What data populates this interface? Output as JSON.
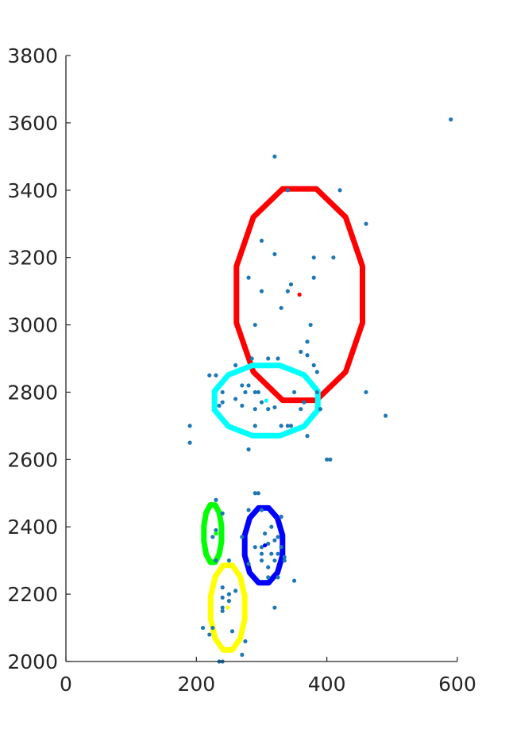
{
  "chart_data": {
    "type": "scatter",
    "title": "",
    "xlabel": "",
    "ylabel": "",
    "xlim": [
      0,
      600
    ],
    "ylim": [
      2000,
      3800
    ],
    "x_ticks": [
      0,
      200,
      400,
      600
    ],
    "y_ticks": [
      2000,
      2200,
      2400,
      2600,
      2800,
      3000,
      3200,
      3400,
      3600,
      3800
    ],
    "x_tick_labels": [
      "0",
      "200",
      "400",
      "600"
    ],
    "y_tick_labels": [
      "2000",
      "2200",
      "2400",
      "2600",
      "2800",
      "3000",
      "3200",
      "3400",
      "3600",
      "3800"
    ],
    "grid": false,
    "legend": "none",
    "point_color": "#1f77b4",
    "points": [
      [
        590,
        3610
      ],
      [
        320,
        3500
      ],
      [
        340,
        3400
      ],
      [
        420,
        3400
      ],
      [
        460,
        3300
      ],
      [
        300,
        3250
      ],
      [
        320,
        3210
      ],
      [
        380,
        3200
      ],
      [
        410,
        3200
      ],
      [
        280,
        3140
      ],
      [
        380,
        3140
      ],
      [
        345,
        3120
      ],
      [
        300,
        3100
      ],
      [
        340,
        3100
      ],
      [
        330,
        3050
      ],
      [
        290,
        3000
      ],
      [
        375,
        3000
      ],
      [
        370,
        2950
      ],
      [
        360,
        2920
      ],
      [
        370,
        2910
      ],
      [
        380,
        2880
      ],
      [
        385,
        2860
      ],
      [
        260,
        2880
      ],
      [
        285,
        2900
      ],
      [
        310,
        2900
      ],
      [
        325,
        2900
      ],
      [
        220,
        2850
      ],
      [
        230,
        2850
      ],
      [
        240,
        2800
      ],
      [
        270,
        2820
      ],
      [
        280,
        2820
      ],
      [
        290,
        2800
      ],
      [
        295,
        2800
      ],
      [
        275,
        2800
      ],
      [
        260,
        2780
      ],
      [
        300,
        2770
      ],
      [
        240,
        2770
      ],
      [
        235,
        2760
      ],
      [
        270,
        2760
      ],
      [
        290,
        2750
      ],
      [
        310,
        2750
      ],
      [
        320,
        2755
      ],
      [
        350,
        2800
      ],
      [
        365,
        2770
      ],
      [
        385,
        2800
      ],
      [
        360,
        2750
      ],
      [
        390,
        2750
      ],
      [
        330,
        2700
      ],
      [
        340,
        2700
      ],
      [
        345,
        2700
      ],
      [
        290,
        2700
      ],
      [
        370,
        2670
      ],
      [
        460,
        2800
      ],
      [
        490,
        2730
      ],
      [
        190,
        2700
      ],
      [
        190,
        2650
      ],
      [
        280,
        2630
      ],
      [
        400,
        2600
      ],
      [
        405,
        2600
      ],
      [
        290,
        2500
      ],
      [
        295,
        2500
      ],
      [
        230,
        2480
      ],
      [
        240,
        2440
      ],
      [
        280,
        2450
      ],
      [
        300,
        2450
      ],
      [
        330,
        2430
      ],
      [
        315,
        2400
      ],
      [
        305,
        2380
      ],
      [
        325,
        2370
      ],
      [
        230,
        2390
      ],
      [
        225,
        2370
      ],
      [
        270,
        2370
      ],
      [
        290,
        2340
      ],
      [
        300,
        2340
      ],
      [
        310,
        2350
      ],
      [
        320,
        2360
      ],
      [
        330,
        2340
      ],
      [
        300,
        2320
      ],
      [
        315,
        2320
      ],
      [
        325,
        2320
      ],
      [
        335,
        2310
      ],
      [
        300,
        2300
      ],
      [
        320,
        2300
      ],
      [
        335,
        2300
      ],
      [
        310,
        2280
      ],
      [
        280,
        2290
      ],
      [
        230,
        2300
      ],
      [
        250,
        2300
      ],
      [
        310,
        2250
      ],
      [
        325,
        2250
      ],
      [
        350,
        2240
      ],
      [
        240,
        2220
      ],
      [
        250,
        2200
      ],
      [
        260,
        2210
      ],
      [
        240,
        2190
      ],
      [
        250,
        2180
      ],
      [
        240,
        2160
      ],
      [
        240,
        2150
      ],
      [
        320,
        2160
      ],
      [
        210,
        2100
      ],
      [
        225,
        2100
      ],
      [
        220,
        2080
      ],
      [
        255,
        2090
      ],
      [
        275,
        2060
      ],
      [
        270,
        2020
      ],
      [
        240,
        2000
      ],
      [
        235,
        2000
      ]
    ],
    "center_points": [
      {
        "x": 358,
        "y": 3090,
        "color": "#ff0000"
      },
      {
        "x": 307,
        "y": 2775,
        "color": "#00ffff"
      },
      {
        "x": 230,
        "y": 2380,
        "color": "#00ff00"
      },
      {
        "x": 305,
        "y": 2345,
        "color": "#0000ff"
      },
      {
        "x": 248,
        "y": 2160,
        "color": "#ffff00"
      }
    ],
    "ellipses": [
      {
        "color": "#ff0000",
        "cx": 358,
        "cy": 3090,
        "rx": 100,
        "ry": 325
      },
      {
        "color": "#00ffff",
        "cx": 307,
        "cy": 2775,
        "rx": 82,
        "ry": 108
      },
      {
        "color": "#00ff00",
        "cx": 225,
        "cy": 2380,
        "rx": 14,
        "ry": 88
      },
      {
        "color": "#0000ff",
        "cx": 303,
        "cy": 2345,
        "rx": 30,
        "ry": 115
      },
      {
        "color": "#ffff00",
        "cx": 248,
        "cy": 2160,
        "rx": 27,
        "ry": 130
      }
    ]
  }
}
